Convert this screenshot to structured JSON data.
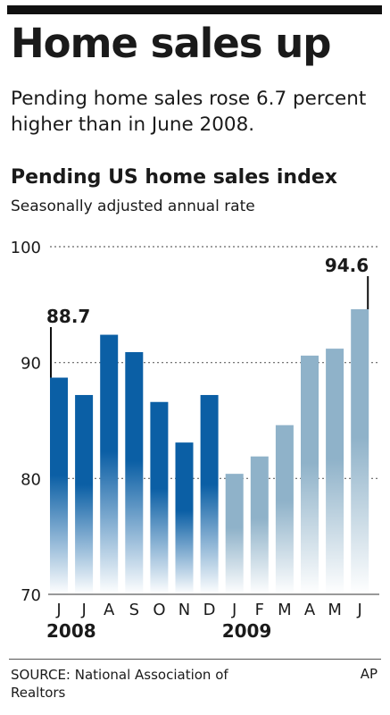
{
  "header": {
    "title": "Home sales up",
    "subtitle": "Pending home sales rose 6.7 percent higher than in June 2008."
  },
  "chart_data": {
    "type": "bar",
    "title": "Pending US home sales index",
    "subtitle": "Seasonally adjusted annual rate",
    "categories": [
      "J",
      "J",
      "A",
      "S",
      "O",
      "N",
      "D",
      "J",
      "F",
      "M",
      "A",
      "M",
      "J"
    ],
    "values": [
      88.7,
      87.2,
      92.4,
      90.9,
      86.6,
      83.1,
      87.2,
      80.4,
      81.9,
      84.6,
      90.6,
      91.2,
      94.6
    ],
    "groups": [
      {
        "label": "2008",
        "start": 0,
        "end": 6
      },
      {
        "label": "2009",
        "start": 7,
        "end": 12
      }
    ],
    "y_ticks": [
      100,
      90,
      80,
      70
    ],
    "ylim": [
      70,
      100
    ],
    "grid": true,
    "annotations": [
      {
        "index": 0,
        "label": "88.7"
      },
      {
        "index": 12,
        "label": "94.6"
      }
    ],
    "colors": {
      "year_2008_top": "#0b5fa5",
      "year_2009_top": "#8fb2c9",
      "bar_bottom": "#ffffff",
      "gridline": "#666666"
    }
  },
  "footer": {
    "source": "SOURCE: National Association of Realtors",
    "credit": "AP"
  }
}
